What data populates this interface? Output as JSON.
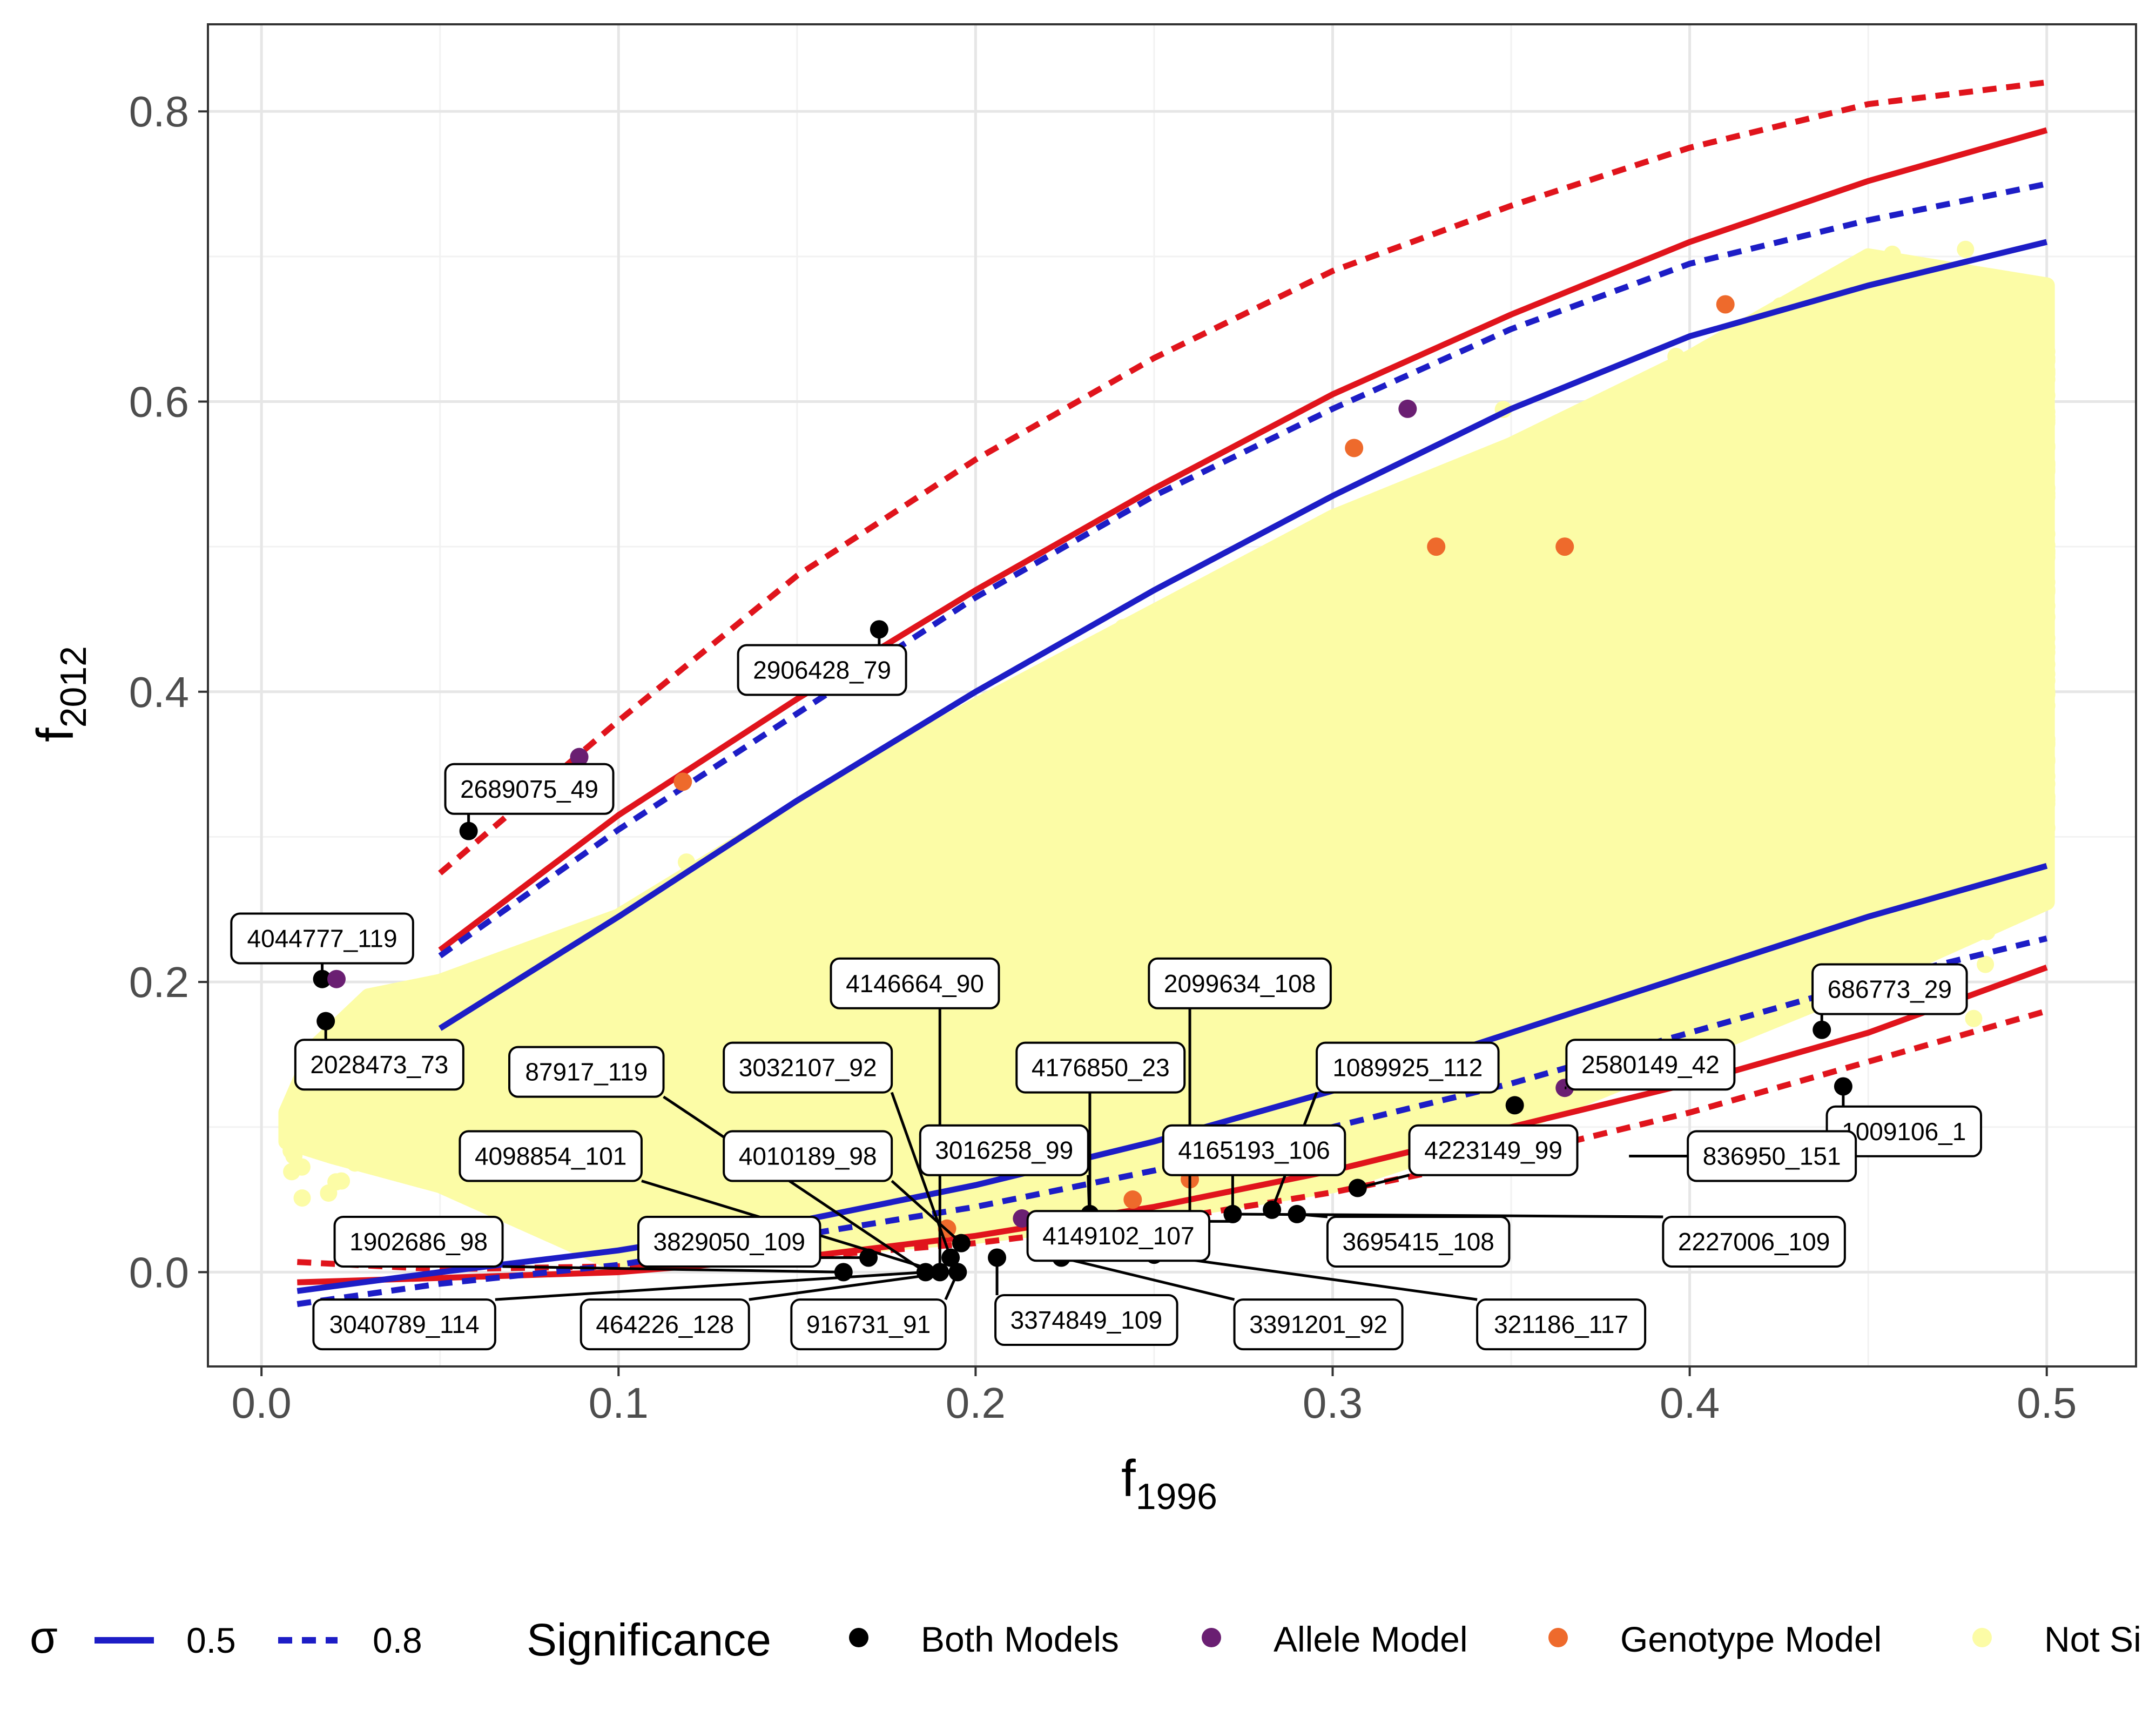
{
  "chart_data": {
    "type": "scatter",
    "xlabel": "f",
    "xlabel_sub": "1996",
    "ylabel": "f",
    "ylabel_sub": "2012",
    "xlim": [
      -0.015,
      0.525
    ],
    "ylim": [
      -0.065,
      0.86
    ],
    "xticks": [
      0.0,
      0.1,
      0.2,
      0.3,
      0.4,
      0.5
    ],
    "xtick_labels": [
      "0.0",
      "0.1",
      "0.2",
      "0.3",
      "0.4",
      "0.5"
    ],
    "yticks": [
      0.0,
      0.2,
      0.4,
      0.6,
      0.8
    ],
    "ytick_labels": [
      "0.0",
      "0.2",
      "0.4",
      "0.6",
      "0.8"
    ],
    "grid": true,
    "legend": {
      "placement": "bottom",
      "sigma_title": "σ",
      "sigma_items": [
        {
          "label": "0.5",
          "style": "solid"
        },
        {
          "label": "0.8",
          "style": "dashed"
        }
      ],
      "sig_title": "Significance",
      "sig_items": [
        {
          "label": "Both Models",
          "color": "#000000"
        },
        {
          "label": "Allele Model",
          "color": "#6a1f72"
        },
        {
          "label": "Genotype Model",
          "color": "#ee6a2c"
        },
        {
          "label": "Not Si",
          "color": "#fcfca6"
        }
      ]
    },
    "colors": {
      "both": "#000000",
      "allele": "#6a1f72",
      "genotype": "#ee6a2c",
      "not_sig": "#fcfca6",
      "red_line": "#e0141c",
      "blue_line": "#1d1dc6"
    },
    "lines": [
      {
        "color": "red",
        "style": "solid",
        "x": [
          0.05,
          0.1,
          0.15,
          0.2,
          0.25,
          0.3,
          0.35,
          0.4,
          0.45,
          0.5
        ],
        "y": [
          0.222,
          0.315,
          0.395,
          0.47,
          0.54,
          0.605,
          0.66,
          0.71,
          0.752,
          0.787
        ]
      },
      {
        "color": "red",
        "style": "dashed",
        "x": [
          0.05,
          0.1,
          0.15,
          0.2,
          0.25,
          0.3,
          0.35,
          0.4,
          0.45,
          0.5
        ],
        "y": [
          0.275,
          0.38,
          0.48,
          0.56,
          0.63,
          0.69,
          0.735,
          0.775,
          0.805,
          0.82
        ]
      },
      {
        "color": "blue",
        "style": "solid",
        "x": [
          0.05,
          0.1,
          0.15,
          0.2,
          0.25,
          0.3,
          0.35,
          0.4,
          0.45,
          0.5
        ],
        "y": [
          0.168,
          0.245,
          0.325,
          0.4,
          0.47,
          0.535,
          0.595,
          0.645,
          0.68,
          0.71
        ]
      },
      {
        "color": "blue",
        "style": "dashed",
        "x": [
          0.05,
          0.1,
          0.15,
          0.2,
          0.25,
          0.3,
          0.35,
          0.4,
          0.45,
          0.5
        ],
        "y": [
          0.218,
          0.305,
          0.385,
          0.465,
          0.535,
          0.595,
          0.65,
          0.695,
          0.725,
          0.75
        ]
      },
      {
        "color": "red",
        "style": "solid",
        "x": [
          0.01,
          0.05,
          0.1,
          0.15,
          0.2,
          0.25,
          0.3,
          0.35,
          0.4,
          0.45,
          0.5
        ],
        "y": [
          -0.007,
          -0.004,
          0.0,
          0.01,
          0.025,
          0.045,
          0.07,
          0.1,
          0.13,
          0.165,
          0.21
        ]
      },
      {
        "color": "red",
        "style": "dashed",
        "x": [
          0.01,
          0.05,
          0.1,
          0.15,
          0.2,
          0.25,
          0.3,
          0.35,
          0.4,
          0.45,
          0.5
        ],
        "y": [
          0.007,
          0.002,
          0.004,
          0.01,
          0.02,
          0.035,
          0.055,
          0.08,
          0.11,
          0.145,
          0.18
        ]
      },
      {
        "color": "blue",
        "style": "solid",
        "x": [
          0.01,
          0.05,
          0.1,
          0.15,
          0.2,
          0.25,
          0.3,
          0.35,
          0.4,
          0.45,
          0.5
        ],
        "y": [
          -0.013,
          0.0,
          0.015,
          0.035,
          0.06,
          0.09,
          0.125,
          0.165,
          0.205,
          0.245,
          0.28
        ]
      },
      {
        "color": "blue",
        "style": "dashed",
        "x": [
          0.01,
          0.05,
          0.1,
          0.15,
          0.2,
          0.25,
          0.3,
          0.35,
          0.4,
          0.45,
          0.5
        ],
        "y": [
          -0.022,
          -0.008,
          0.005,
          0.025,
          0.045,
          0.07,
          0.1,
          0.13,
          0.165,
          0.2,
          0.23
        ]
      }
    ],
    "significant_points": [
      {
        "x": 0.058,
        "y": 0.304,
        "group": "both"
      },
      {
        "x": 0.173,
        "y": 0.443,
        "group": "both"
      },
      {
        "x": 0.017,
        "y": 0.202,
        "group": "both"
      },
      {
        "x": 0.018,
        "y": 0.173,
        "group": "both"
      },
      {
        "x": 0.163,
        "y": 0.0,
        "group": "both"
      },
      {
        "x": 0.17,
        "y": 0.01,
        "group": "both"
      },
      {
        "x": 0.186,
        "y": 0.0,
        "group": "both"
      },
      {
        "x": 0.19,
        "y": 0.0,
        "group": "both"
      },
      {
        "x": 0.193,
        "y": 0.01,
        "group": "both"
      },
      {
        "x": 0.195,
        "y": 0.0,
        "group": "both"
      },
      {
        "x": 0.196,
        "y": 0.02,
        "group": "both"
      },
      {
        "x": 0.206,
        "y": 0.01,
        "group": "both"
      },
      {
        "x": 0.224,
        "y": 0.01,
        "group": "both"
      },
      {
        "x": 0.232,
        "y": 0.04,
        "group": "both"
      },
      {
        "x": 0.25,
        "y": 0.012,
        "group": "both"
      },
      {
        "x": 0.272,
        "y": 0.04,
        "group": "both"
      },
      {
        "x": 0.283,
        "y": 0.043,
        "group": "both"
      },
      {
        "x": 0.29,
        "y": 0.04,
        "group": "both"
      },
      {
        "x": 0.307,
        "y": 0.058,
        "group": "both"
      },
      {
        "x": 0.351,
        "y": 0.115,
        "group": "both"
      },
      {
        "x": 0.437,
        "y": 0.167,
        "group": "both"
      },
      {
        "x": 0.443,
        "y": 0.128,
        "group": "both"
      },
      {
        "x": 0.089,
        "y": 0.355,
        "group": "allele"
      },
      {
        "x": 0.021,
        "y": 0.202,
        "group": "allele"
      },
      {
        "x": 0.321,
        "y": 0.595,
        "group": "allele"
      },
      {
        "x": 0.365,
        "y": 0.127,
        "group": "allele"
      },
      {
        "x": 0.213,
        "y": 0.037,
        "group": "allele"
      },
      {
        "x": 0.118,
        "y": 0.338,
        "group": "genotype"
      },
      {
        "x": 0.306,
        "y": 0.568,
        "group": "genotype"
      },
      {
        "x": 0.329,
        "y": 0.5,
        "group": "genotype"
      },
      {
        "x": 0.365,
        "y": 0.5,
        "group": "genotype"
      },
      {
        "x": 0.41,
        "y": 0.667,
        "group": "genotype"
      },
      {
        "x": 0.244,
        "y": 0.05,
        "group": "genotype"
      },
      {
        "x": 0.26,
        "y": 0.064,
        "group": "genotype"
      },
      {
        "x": 0.192,
        "y": 0.03,
        "group": "genotype"
      }
    ],
    "annotations": [
      {
        "text": "2906428_79",
        "bx": 0.157,
        "by": 0.415,
        "px": 0.173,
        "py": 0.443
      },
      {
        "text": "2689075_49",
        "bx": 0.075,
        "by": 0.333,
        "px": 0.058,
        "py": 0.304
      },
      {
        "text": "4044777_119",
        "bx": 0.017,
        "by": 0.23,
        "px": 0.017,
        "py": 0.202
      },
      {
        "text": "2028473_73",
        "bx": 0.033,
        "by": 0.143,
        "px": 0.018,
        "py": 0.173
      },
      {
        "text": "4146664_90",
        "bx": 0.183,
        "by": 0.199,
        "px": 0.19,
        "py": 0.0
      },
      {
        "text": "2099634_108",
        "bx": 0.274,
        "by": 0.199,
        "px": 0.26,
        "py": 0.04
      },
      {
        "text": "686773_29",
        "bx": 0.456,
        "by": 0.195,
        "px": 0.437,
        "py": 0.167
      },
      {
        "text": "87917_119",
        "bx": 0.091,
        "by": 0.138,
        "px": 0.186,
        "py": 0.0
      },
      {
        "text": "3032107_92",
        "bx": 0.153,
        "by": 0.141,
        "px": 0.193,
        "py": 0.01
      },
      {
        "text": "4176850_23",
        "bx": 0.235,
        "by": 0.141,
        "px": 0.232,
        "py": 0.04
      },
      {
        "text": "1089925_112",
        "bx": 0.321,
        "by": 0.141,
        "px": 0.283,
        "py": 0.043
      },
      {
        "text": "2580149_42",
        "bx": 0.389,
        "by": 0.143,
        "px": 0.365,
        "py": 0.127
      },
      {
        "text": "1009106_1",
        "bx": 0.46,
        "by": 0.097,
        "px": 0.443,
        "py": 0.128
      },
      {
        "text": "4098854_101",
        "bx": 0.081,
        "by": 0.08,
        "px": 0.19,
        "py": 0.0
      },
      {
        "text": "4010189_98",
        "bx": 0.153,
        "by": 0.08,
        "px": 0.196,
        "py": 0.02
      },
      {
        "text": "3016258_99",
        "bx": 0.208,
        "by": 0.084,
        "px": 0.232,
        "py": 0.03
      },
      {
        "text": "4165193_106",
        "bx": 0.278,
        "by": 0.084,
        "px": 0.272,
        "py": 0.04
      },
      {
        "text": "4223149_99",
        "bx": 0.345,
        "by": 0.084,
        "px": 0.307,
        "py": 0.058
      },
      {
        "text": "836950_151",
        "bx": 0.423,
        "by": 0.08,
        "px": 0.383,
        "py": 0.08
      },
      {
        "text": "1902686_98",
        "bx": 0.044,
        "by": 0.021,
        "px": 0.163,
        "py": 0.0
      },
      {
        "text": "3829050_109",
        "bx": 0.131,
        "by": 0.021,
        "px": 0.17,
        "py": 0.01
      },
      {
        "text": "4149102_107",
        "bx": 0.24,
        "by": 0.025,
        "px": 0.272,
        "py": 0.035
      },
      {
        "text": "3695415_108",
        "bx": 0.324,
        "by": 0.021,
        "px": 0.29,
        "py": 0.04
      },
      {
        "text": "2227006_109",
        "bx": 0.418,
        "by": 0.021,
        "px": 0.272,
        "py": 0.04
      },
      {
        "text": "3040789_114",
        "bx": 0.04,
        "by": -0.036,
        "px": 0.186,
        "py": 0.0
      },
      {
        "text": "464226_128",
        "bx": 0.113,
        "by": -0.036,
        "px": 0.193,
        "py": 0.0
      },
      {
        "text": "916731_91",
        "bx": 0.17,
        "by": -0.036,
        "px": 0.195,
        "py": 0.0
      },
      {
        "text": "3374849_109",
        "bx": 0.231,
        "by": -0.033,
        "px": 0.206,
        "py": 0.01
      },
      {
        "text": "3391201_92",
        "bx": 0.296,
        "by": -0.036,
        "px": 0.224,
        "py": 0.01
      },
      {
        "text": "321186_117",
        "bx": 0.364,
        "by": -0.036,
        "px": 0.25,
        "py": 0.012
      }
    ]
  }
}
